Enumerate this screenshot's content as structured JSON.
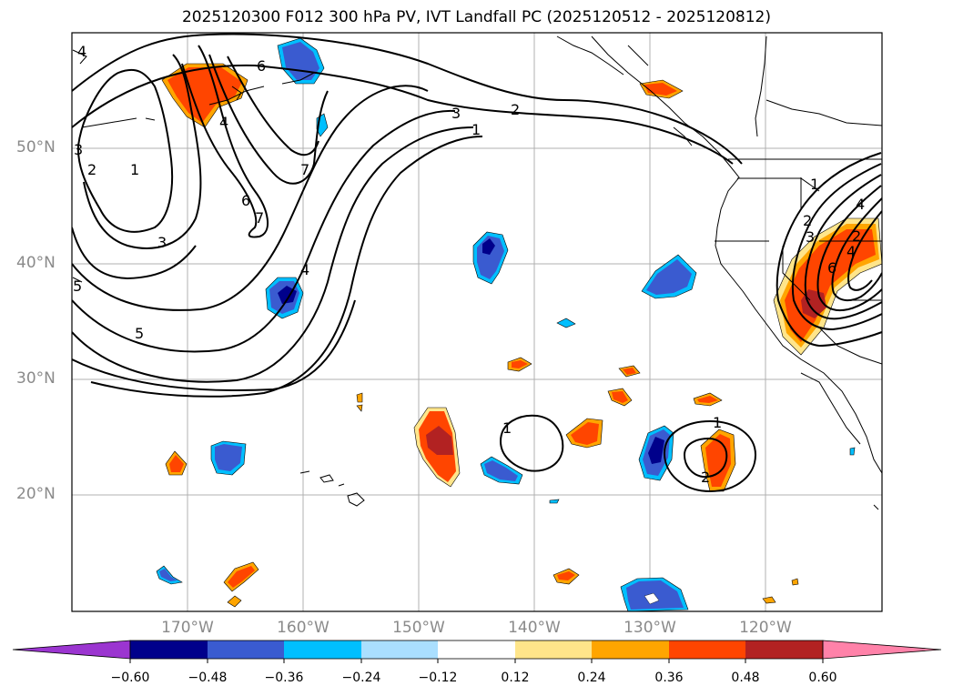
{
  "title": "2025120300 F012 300 hPa PV, IVT Landfall PC (2025120512 - 2025120812)",
  "lat_labels": [
    "50°N",
    "40°N",
    "30°N",
    "20°N"
  ],
  "lon_labels": [
    "170°W",
    "160°W",
    "150°W",
    "140°W",
    "130°W",
    "120°W"
  ],
  "colorbar": {
    "ticks": [
      "−0.60",
      "−0.48",
      "−0.36",
      "−0.24",
      "−0.12",
      "0.12",
      "0.24",
      "0.36",
      "0.48",
      "0.60"
    ],
    "colors": [
      "#9b35d0",
      "#00008b",
      "#3a5bd0",
      "#00bfff",
      "#aadfff",
      "#ffffff",
      "#ffe58a",
      "#ffa500",
      "#ff4500",
      "#b22222",
      "#ff82a9"
    ]
  },
  "contour_labels": [
    "1",
    "2",
    "3",
    "4",
    "5",
    "6",
    "7"
  ]
}
